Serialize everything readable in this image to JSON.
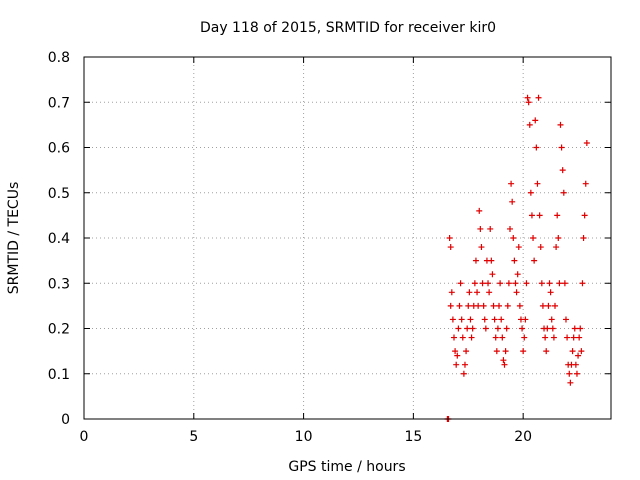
{
  "chart_data": {
    "type": "scatter",
    "title": "Day 118 of 2015, SRMTID for receiver kir0",
    "xlabel": "GPS time / hours",
    "ylabel": "SRMTID / TECUs",
    "xlim": [
      0,
      24
    ],
    "ylim": [
      0,
      0.8
    ],
    "xticks": [
      0,
      5,
      10,
      15,
      20
    ],
    "xtick_labels": [
      "0",
      "5",
      "10",
      "15",
      "20"
    ],
    "yticks": [
      0,
      0.1,
      0.2,
      0.3,
      0.4,
      0.5,
      0.6,
      0.7,
      0.8
    ],
    "ytick_labels": [
      "0",
      "0.1",
      "0.2",
      "0.3",
      "0.4",
      "0.5",
      "0.6",
      "0.7",
      "0.8"
    ],
    "grid": true,
    "marker": "+",
    "color": "#e00000",
    "series": [
      {
        "name": "kir0",
        "points": [
          [
            16.55,
            0.0
          ],
          [
            16.6,
            0.0
          ],
          [
            16.65,
            0.4
          ],
          [
            16.7,
            0.38
          ],
          [
            16.7,
            0.25
          ],
          [
            16.75,
            0.28
          ],
          [
            16.8,
            0.22
          ],
          [
            16.85,
            0.18
          ],
          [
            16.9,
            0.15
          ],
          [
            16.95,
            0.12
          ],
          [
            17.0,
            0.14
          ],
          [
            17.05,
            0.2
          ],
          [
            17.1,
            0.25
          ],
          [
            17.15,
            0.3
          ],
          [
            17.2,
            0.22
          ],
          [
            17.25,
            0.18
          ],
          [
            17.3,
            0.1
          ],
          [
            17.35,
            0.12
          ],
          [
            17.4,
            0.15
          ],
          [
            17.45,
            0.2
          ],
          [
            17.5,
            0.25
          ],
          [
            17.55,
            0.28
          ],
          [
            17.6,
            0.22
          ],
          [
            17.65,
            0.18
          ],
          [
            17.7,
            0.2
          ],
          [
            17.75,
            0.25
          ],
          [
            17.8,
            0.3
          ],
          [
            17.85,
            0.35
          ],
          [
            17.9,
            0.28
          ],
          [
            17.95,
            0.25
          ],
          [
            18.0,
            0.46
          ],
          [
            18.05,
            0.42
          ],
          [
            18.1,
            0.38
          ],
          [
            18.15,
            0.3
          ],
          [
            18.2,
            0.25
          ],
          [
            18.25,
            0.22
          ],
          [
            18.3,
            0.2
          ],
          [
            18.35,
            0.35
          ],
          [
            18.4,
            0.3
          ],
          [
            18.45,
            0.28
          ],
          [
            18.5,
            0.42
          ],
          [
            18.55,
            0.35
          ],
          [
            18.6,
            0.32
          ],
          [
            18.65,
            0.25
          ],
          [
            18.7,
            0.22
          ],
          [
            18.75,
            0.18
          ],
          [
            18.8,
            0.15
          ],
          [
            18.85,
            0.2
          ],
          [
            18.9,
            0.25
          ],
          [
            18.95,
            0.3
          ],
          [
            19.0,
            0.22
          ],
          [
            19.05,
            0.18
          ],
          [
            19.1,
            0.13
          ],
          [
            19.15,
            0.12
          ],
          [
            19.2,
            0.15
          ],
          [
            19.25,
            0.2
          ],
          [
            19.3,
            0.25
          ],
          [
            19.35,
            0.3
          ],
          [
            19.4,
            0.42
          ],
          [
            19.45,
            0.52
          ],
          [
            19.5,
            0.48
          ],
          [
            19.55,
            0.4
          ],
          [
            19.6,
            0.35
          ],
          [
            19.65,
            0.3
          ],
          [
            19.7,
            0.28
          ],
          [
            19.75,
            0.32
          ],
          [
            19.8,
            0.38
          ],
          [
            19.85,
            0.25
          ],
          [
            19.9,
            0.22
          ],
          [
            19.95,
            0.2
          ],
          [
            20.0,
            0.15
          ],
          [
            20.05,
            0.18
          ],
          [
            20.1,
            0.22
          ],
          [
            20.15,
            0.3
          ],
          [
            20.2,
            0.71
          ],
          [
            20.25,
            0.7
          ],
          [
            20.3,
            0.65
          ],
          [
            20.35,
            0.5
          ],
          [
            20.4,
            0.45
          ],
          [
            20.45,
            0.4
          ],
          [
            20.5,
            0.35
          ],
          [
            20.55,
            0.66
          ],
          [
            20.6,
            0.6
          ],
          [
            20.65,
            0.52
          ],
          [
            20.7,
            0.71
          ],
          [
            20.75,
            0.45
          ],
          [
            20.8,
            0.38
          ],
          [
            20.85,
            0.3
          ],
          [
            20.9,
            0.25
          ],
          [
            20.95,
            0.2
          ],
          [
            21.0,
            0.18
          ],
          [
            21.05,
            0.15
          ],
          [
            21.1,
            0.2
          ],
          [
            21.15,
            0.25
          ],
          [
            21.2,
            0.3
          ],
          [
            21.25,
            0.28
          ],
          [
            21.3,
            0.22
          ],
          [
            21.35,
            0.2
          ],
          [
            21.4,
            0.18
          ],
          [
            21.45,
            0.25
          ],
          [
            21.5,
            0.38
          ],
          [
            21.55,
            0.45
          ],
          [
            21.6,
            0.4
          ],
          [
            21.65,
            0.3
          ],
          [
            21.7,
            0.65
          ],
          [
            21.75,
            0.6
          ],
          [
            21.8,
            0.55
          ],
          [
            21.85,
            0.5
          ],
          [
            21.9,
            0.3
          ],
          [
            21.95,
            0.22
          ],
          [
            22.0,
            0.18
          ],
          [
            22.05,
            0.12
          ],
          [
            22.1,
            0.1
          ],
          [
            22.15,
            0.08
          ],
          [
            22.2,
            0.12
          ],
          [
            22.25,
            0.15
          ],
          [
            22.3,
            0.18
          ],
          [
            22.35,
            0.2
          ],
          [
            22.4,
            0.12
          ],
          [
            22.45,
            0.1
          ],
          [
            22.5,
            0.14
          ],
          [
            22.55,
            0.18
          ],
          [
            22.6,
            0.2
          ],
          [
            22.65,
            0.15
          ],
          [
            22.7,
            0.3
          ],
          [
            22.75,
            0.4
          ],
          [
            22.8,
            0.45
          ],
          [
            22.85,
            0.52
          ],
          [
            22.9,
            0.61
          ]
        ]
      }
    ]
  }
}
